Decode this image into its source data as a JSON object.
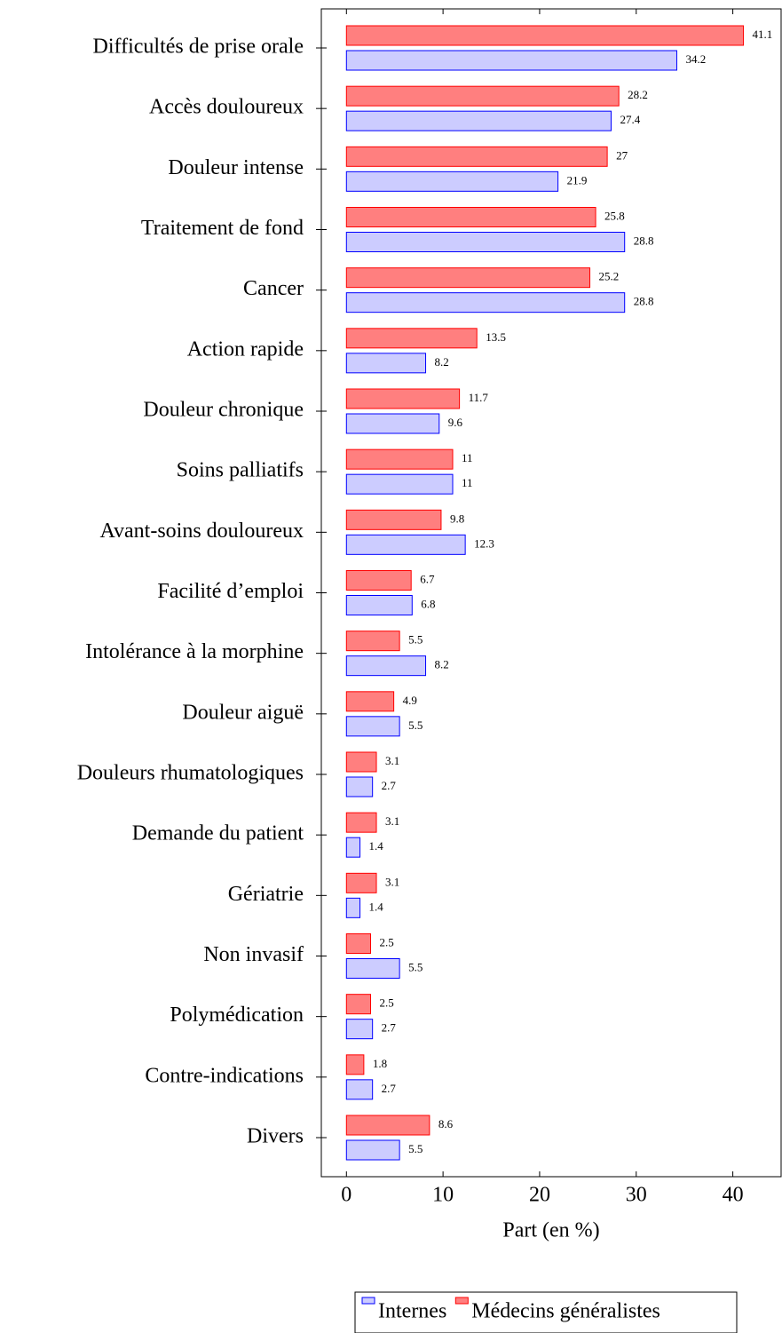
{
  "chart_data": {
    "type": "bar",
    "orientation": "horizontal",
    "xlabel": "Part (en %)",
    "categories": [
      "Difficultés de prise orale",
      "Accès douloureux",
      "Douleur intense",
      "Traitement de fond",
      "Cancer",
      "Action rapide",
      "Douleur chronique",
      "Soins palliatifs",
      "Avant-soins douloureux",
      "Facilité d’emploi",
      "Intolérance à la morphine",
      "Douleur aiguë",
      "Douleurs rhumatologiques",
      "Demande du patient",
      "Gériatrie",
      "Non invasif",
      "Polymédication",
      "Contre-indications",
      "Divers"
    ],
    "series": [
      {
        "name": "Internes",
        "color": "#0000ff",
        "values": [
          34.2,
          27.4,
          21.9,
          28.8,
          28.8,
          8.2,
          9.6,
          11,
          12.3,
          6.8,
          8.2,
          5.5,
          2.7,
          1.4,
          1.4,
          5.5,
          2.7,
          2.7,
          5.5
        ]
      },
      {
        "name": "Médecins généralistes",
        "color": "#ff0000",
        "values": [
          41.1,
          28.2,
          27,
          25.8,
          25.2,
          13.5,
          11.7,
          11,
          9.8,
          6.7,
          5.5,
          4.9,
          3.1,
          3.1,
          3.1,
          2.5,
          2.5,
          1.8,
          8.6
        ]
      }
    ],
    "xlim": [
      -2.6,
      45
    ],
    "xticks": [
      0,
      10,
      20,
      30,
      40
    ],
    "legend": "bottom"
  }
}
